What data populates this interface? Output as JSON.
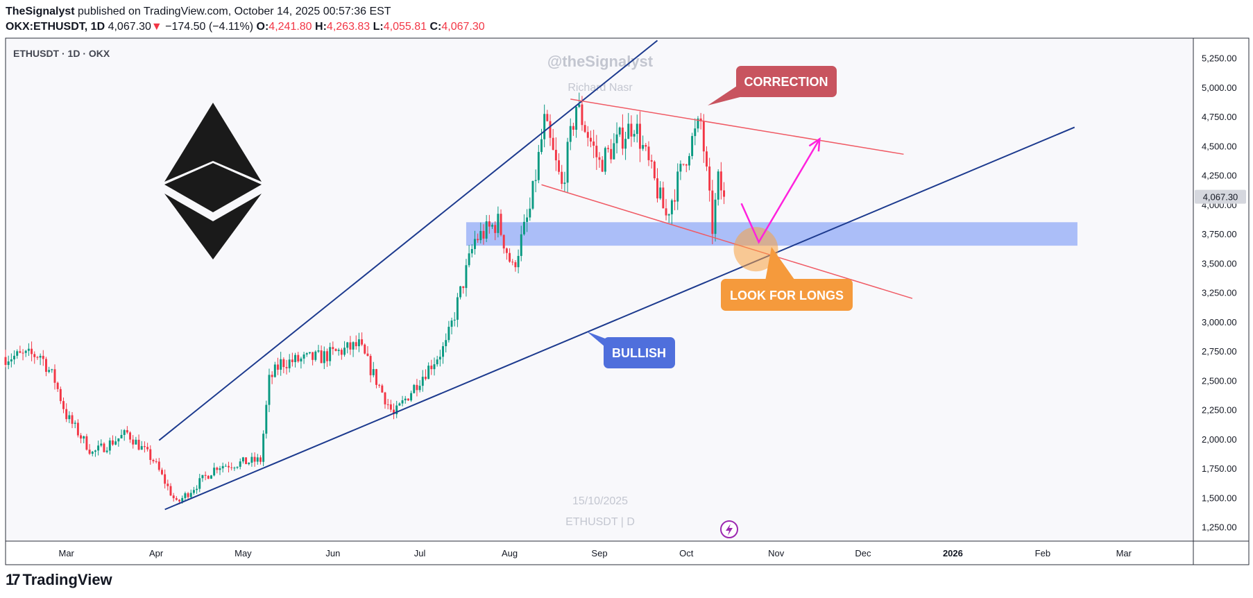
{
  "header": {
    "author": "TheSignalyst",
    "published": " published on TradingView.com, October 14, 2025 00:57:36 EST"
  },
  "quote": {
    "symbol": "OKX:ETHUSDT, 1D",
    "last": "4,067.30",
    "arrow": "▼",
    "change": "−174.50 (−4.11%)",
    "o_label": "O:",
    "o": "4,241.80",
    "h_label": "H:",
    "h": "4,263.83",
    "l_label": "L:",
    "l": "4,055.81",
    "c_label": "C:",
    "c": "4,067.30"
  },
  "pane": {
    "symbol_label": "ETHUSDT · 1D · OKX",
    "watermark": "@theSignalyst",
    "watermark_sub": "Richard Nasr",
    "date_watermark": "15/10/2025",
    "symbol_watermark": "ETHUSDT | D",
    "last_price_tag": "4,067.30"
  },
  "brand": {
    "name": "TradingView",
    "logo_icon": "tradingview-logo-icon"
  },
  "colors": {
    "up": "#089981",
    "down": "#f23645",
    "blue_line": "#1c3a8e",
    "red_line": "#f05a64",
    "zone": "#9db4f7",
    "magenta": "#ff22dd",
    "correction": "#c8545f",
    "bullish": "#4f6fdc",
    "longs": "#f59a3c"
  },
  "chart_data": {
    "type": "candlestick",
    "title": "ETHUSDT · 1D · OKX",
    "y_axis_ticks": [
      1250,
      1500,
      1750,
      2000,
      2250,
      2500,
      2750,
      3000,
      3250,
      3500,
      3750,
      4000,
      4250,
      4500,
      4750,
      5000,
      5250
    ],
    "y_axis_labels": [
      "1,250.00",
      "1,500.00",
      "1,750.00",
      "2,000.00",
      "2,250.00",
      "2,500.00",
      "2,750.00",
      "3,000.00",
      "3,250.00",
      "3,500.00",
      "3,750.00",
      "4,000.00",
      "4,250.00",
      "4,500.00",
      "4,750.00",
      "5,000.00",
      "5,250.00"
    ],
    "ylim": [
      1130,
      5420
    ],
    "x_range": [
      "2025-02-08",
      "2026-03-25"
    ],
    "x_axis_ticks": [
      {
        "date": "2025-03-01",
        "label": "Mar"
      },
      {
        "date": "2025-04-01",
        "label": "Apr"
      },
      {
        "date": "2025-05-01",
        "label": "May"
      },
      {
        "date": "2025-06-01",
        "label": "Jun"
      },
      {
        "date": "2025-07-01",
        "label": "Jul"
      },
      {
        "date": "2025-08-01",
        "label": "Aug"
      },
      {
        "date": "2025-09-01",
        "label": "Sep"
      },
      {
        "date": "2025-10-01",
        "label": "Oct"
      },
      {
        "date": "2025-11-01",
        "label": "Nov"
      },
      {
        "date": "2025-12-01",
        "label": "Dec"
      },
      {
        "date": "2026-01-01",
        "label": "2026"
      },
      {
        "date": "2026-02-01",
        "label": "Feb"
      },
      {
        "date": "2026-03-01",
        "label": "Mar"
      }
    ],
    "last_price": 4067.3,
    "price_path": [
      {
        "date": "2025-02-08",
        "close": 2700
      },
      {
        "date": "2025-02-20",
        "close": 2720
      },
      {
        "date": "2025-02-25",
        "close": 2500
      },
      {
        "date": "2025-03-01",
        "close": 2200
      },
      {
        "date": "2025-03-10",
        "close": 1880
      },
      {
        "date": "2025-03-22",
        "close": 2050
      },
      {
        "date": "2025-03-31",
        "close": 1820
      },
      {
        "date": "2025-04-08",
        "close": 1450
      },
      {
        "date": "2025-04-22",
        "close": 1770
      },
      {
        "date": "2025-05-07",
        "close": 1820
      },
      {
        "date": "2025-05-10",
        "close": 2500
      },
      {
        "date": "2025-05-14",
        "close": 2650
      },
      {
        "date": "2025-05-28",
        "close": 2700
      },
      {
        "date": "2025-06-10",
        "close": 2800
      },
      {
        "date": "2025-06-22",
        "close": 2200
      },
      {
        "date": "2025-06-30",
        "close": 2480
      },
      {
        "date": "2025-07-10",
        "close": 2800
      },
      {
        "date": "2025-07-20",
        "close": 3700
      },
      {
        "date": "2025-07-28",
        "close": 3850
      },
      {
        "date": "2025-08-02",
        "close": 3450
      },
      {
        "date": "2025-08-08",
        "close": 3950
      },
      {
        "date": "2025-08-13",
        "close": 4700
      },
      {
        "date": "2025-08-19",
        "close": 4150
      },
      {
        "date": "2025-08-24",
        "close": 4850
      },
      {
        "date": "2025-09-01",
        "close": 4350
      },
      {
        "date": "2025-09-13",
        "close": 4700
      },
      {
        "date": "2025-09-24",
        "close": 3900
      },
      {
        "date": "2025-10-02",
        "close": 4500
      },
      {
        "date": "2025-10-06",
        "close": 4700
      },
      {
        "date": "2025-10-10",
        "close": 3800
      },
      {
        "date": "2025-10-12",
        "close": 4200
      },
      {
        "date": "2025-10-14",
        "close": 4067
      }
    ],
    "drawings": {
      "upper_channel_line": [
        {
          "date": "2025-04-02",
          "price": 1990
        },
        {
          "date": "2025-09-21",
          "price": 5400
        }
      ],
      "bullish_trendline": [
        {
          "date": "2025-04-04",
          "price": 1400
        },
        {
          "date": "2026-02-12",
          "price": 4660
        }
      ],
      "correction_upper_line": [
        {
          "date": "2025-08-22",
          "price": 4900
        },
        {
          "date": "2025-12-15",
          "price": 4430
        }
      ],
      "correction_lower_line": [
        {
          "date": "2025-08-12",
          "price": 4170
        },
        {
          "date": "2025-12-18",
          "price": 3200
        }
      ],
      "demand_zone": {
        "from": "2025-07-17",
        "to": "2026-02-13",
        "low": 3650,
        "high": 3850
      },
      "projection_arrow": [
        {
          "date": "2025-10-20",
          "price": 4010
        },
        {
          "date": "2025-10-26",
          "price": 3680
        },
        {
          "date": "2025-11-16",
          "price": 4560
        }
      ],
      "focus_circle": {
        "date": "2025-10-25",
        "price": 3620
      }
    },
    "annotations": [
      {
        "text": "CORRECTION",
        "date": "2025-10-29",
        "price": 4990
      },
      {
        "text": "BULLISH",
        "date": "2025-09-12",
        "price": 2720
      },
      {
        "text": "LOOK FOR LONGS",
        "date": "2025-11-03",
        "price": 3160
      }
    ]
  }
}
